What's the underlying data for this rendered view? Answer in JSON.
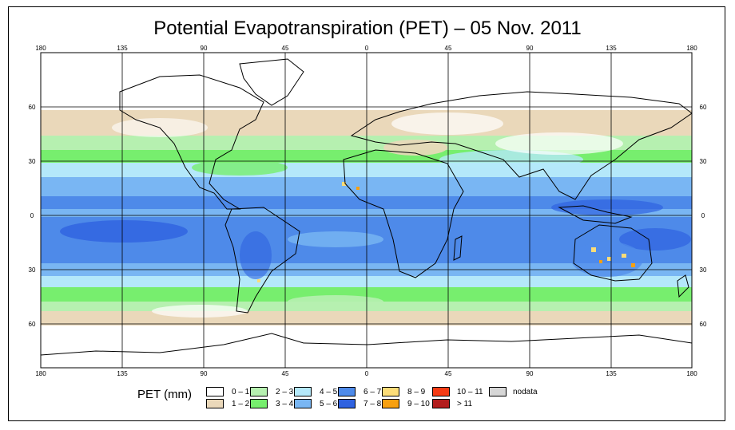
{
  "title": "Potential Evapotranspiration (PET) – 05 Nov. 2011",
  "axes": {
    "lon_labels": [
      "180",
      "135",
      "90",
      "45",
      "0",
      "45",
      "90",
      "135",
      "180"
    ],
    "lat_labels": [
      "60",
      "30",
      "0",
      "30",
      "60"
    ]
  },
  "legend": {
    "title": "PET (mm)",
    "items": [
      {
        "label": "0 – 1",
        "color": "#ffffff"
      },
      {
        "label": "1 – 2",
        "color": "#ead8ba"
      },
      {
        "label": "2 – 3",
        "color": "#b6f0b0"
      },
      {
        "label": "3 – 4",
        "color": "#77ee6e"
      },
      {
        "label": "4 – 5",
        "color": "#b4e8fa"
      },
      {
        "label": "5 – 6",
        "color": "#79b6f3"
      },
      {
        "label": "6 – 7",
        "color": "#4e8ae9"
      },
      {
        "label": "7 – 8",
        "color": "#2f62e0"
      },
      {
        "label": "8 – 9",
        "color": "#fcdc78"
      },
      {
        "label": "9 – 10",
        "color": "#f8a010"
      },
      {
        "label": "10 – 11",
        "color": "#f53b14"
      },
      {
        "label": "> 11",
        "color": "#b21e1e"
      },
      {
        "label": "nodata",
        "color": "#d6d6d6"
      }
    ]
  }
}
